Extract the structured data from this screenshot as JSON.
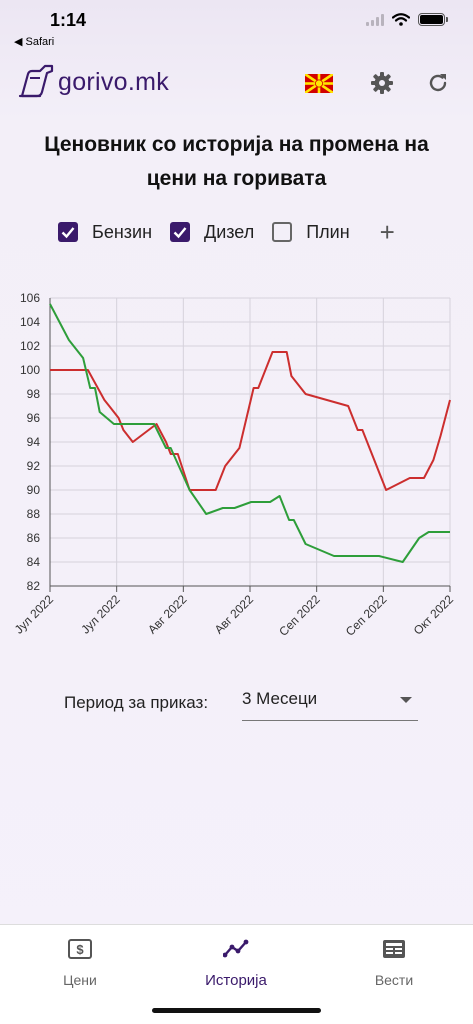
{
  "status_bar": {
    "time": "1:14",
    "back_app": "◀ Safari"
  },
  "header": {
    "logo_text": "gorivo.mk"
  },
  "title": {
    "line1": "Ценовник со историја на промена на",
    "line2": "цени на горивата"
  },
  "filters": [
    {
      "label": "Бензин",
      "checked": true
    },
    {
      "label": "Дизел",
      "checked": true
    },
    {
      "label": "Плин",
      "checked": false
    }
  ],
  "add_label": "+",
  "chart_data": {
    "type": "line",
    "ylim": [
      82,
      106
    ],
    "yticks": [
      82,
      84,
      86,
      88,
      90,
      92,
      94,
      96,
      98,
      100,
      102,
      104,
      106
    ],
    "xticks": [
      "Јул 2022",
      "Јул 2022",
      "Авг 2022",
      "Авг 2022",
      "Сеп 2022",
      "Сеп 2022",
      "Окт 2022"
    ],
    "grid": true,
    "legend": "none",
    "series": [
      {
        "color": "#cc2e2e",
        "points": [
          [
            0,
            100
          ],
          [
            0.8,
            100
          ],
          [
            1.15,
            97.5
          ],
          [
            1.25,
            97
          ],
          [
            1.45,
            96
          ],
          [
            1.55,
            95
          ],
          [
            1.75,
            94
          ],
          [
            2.25,
            95.5
          ],
          [
            2.45,
            94
          ],
          [
            2.55,
            93
          ],
          [
            2.7,
            93
          ],
          [
            2.95,
            90
          ],
          [
            3.5,
            90
          ],
          [
            3.7,
            92
          ],
          [
            4.0,
            93.5
          ],
          [
            4.3,
            98.5
          ],
          [
            4.4,
            98.5
          ],
          [
            4.7,
            101.5
          ],
          [
            5.0,
            101.5
          ],
          [
            5.1,
            99.5
          ],
          [
            5.4,
            98
          ],
          [
            6.3,
            97
          ],
          [
            6.5,
            95
          ],
          [
            6.6,
            95
          ],
          [
            7.1,
            90
          ],
          [
            7.6,
            91
          ],
          [
            7.9,
            91
          ],
          [
            8.1,
            92.5
          ],
          [
            8.25,
            94.5
          ],
          [
            8.45,
            97.5
          ]
        ]
      },
      {
        "color": "#2e9e3a",
        "points": [
          [
            0,
            105.5
          ],
          [
            0.4,
            102.5
          ],
          [
            0.7,
            101
          ],
          [
            0.85,
            98.5
          ],
          [
            0.95,
            98.5
          ],
          [
            1.05,
            96.5
          ],
          [
            1.35,
            95.5
          ],
          [
            2.2,
            95.5
          ],
          [
            2.45,
            93.5
          ],
          [
            2.55,
            93.5
          ],
          [
            2.95,
            90
          ],
          [
            3.3,
            88
          ],
          [
            3.65,
            88.5
          ],
          [
            3.9,
            88.5
          ],
          [
            4.25,
            89
          ],
          [
            4.65,
            89
          ],
          [
            4.85,
            89.5
          ],
          [
            5.05,
            87.5
          ],
          [
            5.15,
            87.5
          ],
          [
            5.4,
            85.5
          ],
          [
            6.0,
            84.5
          ],
          [
            6.95,
            84.5
          ],
          [
            7.45,
            84
          ],
          [
            7.8,
            86
          ],
          [
            8.0,
            86.5
          ],
          [
            8.45,
            86.5
          ]
        ]
      }
    ]
  },
  "period": {
    "label": "Период за приказ:",
    "value": "3 Месеци"
  },
  "tabs": [
    {
      "label": "Цени",
      "active": false
    },
    {
      "label": "Историја",
      "active": true
    },
    {
      "label": "Вести",
      "active": false
    }
  ]
}
